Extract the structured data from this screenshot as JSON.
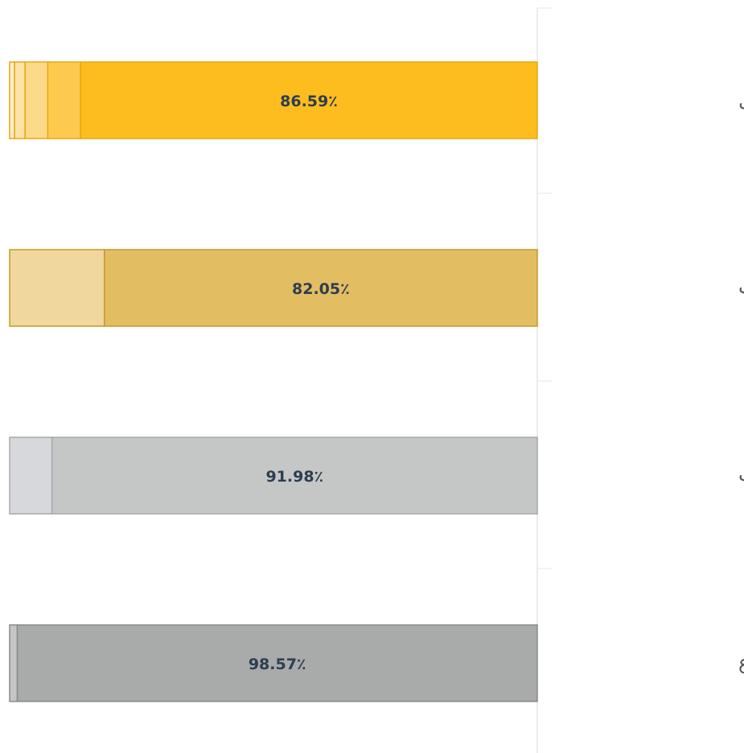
{
  "chart_data": {
    "type": "stacked-bar-horizontal",
    "categories": [
      "تحويل الأموال",
      "المشتريات",
      "السحب",
      "الإيداع"
    ],
    "segments": [
      [
        86.59,
        6.2,
        4.3,
        2.0,
        0.91
      ],
      [
        82.05,
        17.95
      ],
      [
        91.98,
        8.02
      ],
      [
        98.57,
        1.43
      ]
    ],
    "value_labels": [
      "86.59٪",
      "82.05٪",
      "91.98٪",
      "98.57٪"
    ],
    "colors": [
      [
        "#fdbd1f",
        "#fdca4f",
        "#fdd98a",
        "#fde3a8",
        "#fef0cc"
      ],
      [
        "#e3bd62",
        "#efd79e"
      ],
      [
        "#c5c7c6",
        "#d6d8db"
      ],
      [
        "#a9aaaa",
        "#c5c7c6"
      ]
    ],
    "borders": [
      "#e6a90f",
      "#c9982a",
      "#a8a8a8",
      "#8a8a8a"
    ],
    "xlim": [
      0,
      100
    ]
  }
}
